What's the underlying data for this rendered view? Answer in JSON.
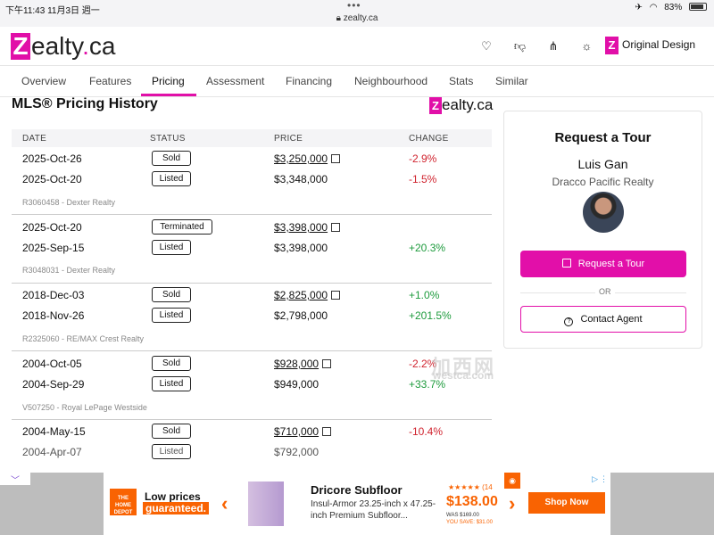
{
  "status_bar": {
    "time": "下午11:43",
    "date": "11月3日 週一",
    "url": "zealty.ca",
    "battery": "83%"
  },
  "header": {
    "logo_text": "ealty",
    "logo_suffix": "ca",
    "original_design": "Original Design",
    "icons": [
      "heart-icon",
      "thumbs-down-icon",
      "share-icon",
      "brightness-icon"
    ]
  },
  "tabs": [
    {
      "label": "Overview"
    },
    {
      "label": "Features"
    },
    {
      "label": "Pricing",
      "active": true
    },
    {
      "label": "Assessment"
    },
    {
      "label": "Financing"
    },
    {
      "label": "Neighbourhood"
    },
    {
      "label": "Stats"
    },
    {
      "label": "Similar"
    }
  ],
  "history": {
    "title": "MLS® Pricing History",
    "brand": "ealty.ca",
    "columns": {
      "date": "DATE",
      "status": "STATUS",
      "price": "PRICE",
      "change": "CHANGE"
    },
    "groups": [
      {
        "rows": [
          {
            "date": "2025-Oct-26",
            "status": "Sold",
            "price": "$3,250,000",
            "linked": true,
            "change": "-2.9%",
            "dir": "neg"
          },
          {
            "date": "2025-Oct-20",
            "status": "Listed",
            "price": "$3,348,000",
            "linked": false,
            "change": "-1.5%",
            "dir": "neg"
          }
        ],
        "listing": "R3060458 - Dexter Realty"
      },
      {
        "rows": [
          {
            "date": "2025-Oct-20",
            "status": "Terminated",
            "price": "$3,398,000",
            "linked": true,
            "change": "",
            "dir": ""
          },
          {
            "date": "2025-Sep-15",
            "status": "Listed",
            "price": "$3,398,000",
            "linked": false,
            "change": "+20.3%",
            "dir": "pos"
          }
        ],
        "listing": "R3048031 - Dexter Realty"
      },
      {
        "rows": [
          {
            "date": "2018-Dec-03",
            "status": "Sold",
            "price": "$2,825,000",
            "linked": true,
            "change": "+1.0%",
            "dir": "pos"
          },
          {
            "date": "2018-Nov-26",
            "status": "Listed",
            "price": "$2,798,000",
            "linked": false,
            "change": "+201.5%",
            "dir": "pos"
          }
        ],
        "listing": "R2325060 - RE/MAX Crest Realty"
      },
      {
        "rows": [
          {
            "date": "2004-Oct-05",
            "status": "Sold",
            "price": "$928,000",
            "linked": true,
            "change": "-2.2%",
            "dir": "neg"
          },
          {
            "date": "2004-Sep-29",
            "status": "Listed",
            "price": "$949,000",
            "linked": false,
            "change": "+33.7%",
            "dir": "pos"
          }
        ],
        "listing": "V507250 - Royal LePage Westside"
      },
      {
        "rows": [
          {
            "date": "2004-May-15",
            "status": "Sold",
            "price": "$710,000",
            "linked": true,
            "change": "-10.4%",
            "dir": "neg"
          },
          {
            "date": "2004-Apr-07",
            "status": "Listed",
            "price": "$792,000",
            "linked": false,
            "change": "",
            "dir": ""
          }
        ],
        "listing": ""
      }
    ]
  },
  "tour_card": {
    "title": "Request a Tour",
    "agent_name": "Luis Gan",
    "agency": "Dracco Pacific Realty",
    "primary_button": "Request a Tour",
    "divider": "OR",
    "secondary_button": "Contact Agent"
  },
  "watermark": {
    "cn": "加西网",
    "en": "westca.com"
  },
  "ad": {
    "brand_logo": "THE HOME DEPOT",
    "tagline_1": "Low prices",
    "tagline_2": "guaranteed.",
    "product_title": "Dricore Subfloor",
    "product_desc": "Insul-Armor 23.25-inch x 47.25-inch Premium Subfloor...",
    "stars": "★★★★★ (14",
    "price": "$138.00",
    "was": "WAS $169.00",
    "save": "YOU SAVE: $31.00",
    "cta": "Shop Now"
  },
  "colors": {
    "brand": "#e10fa8",
    "negative": "#d0232e",
    "positive": "#1e9b3d",
    "ad_orange": "#f96302"
  }
}
